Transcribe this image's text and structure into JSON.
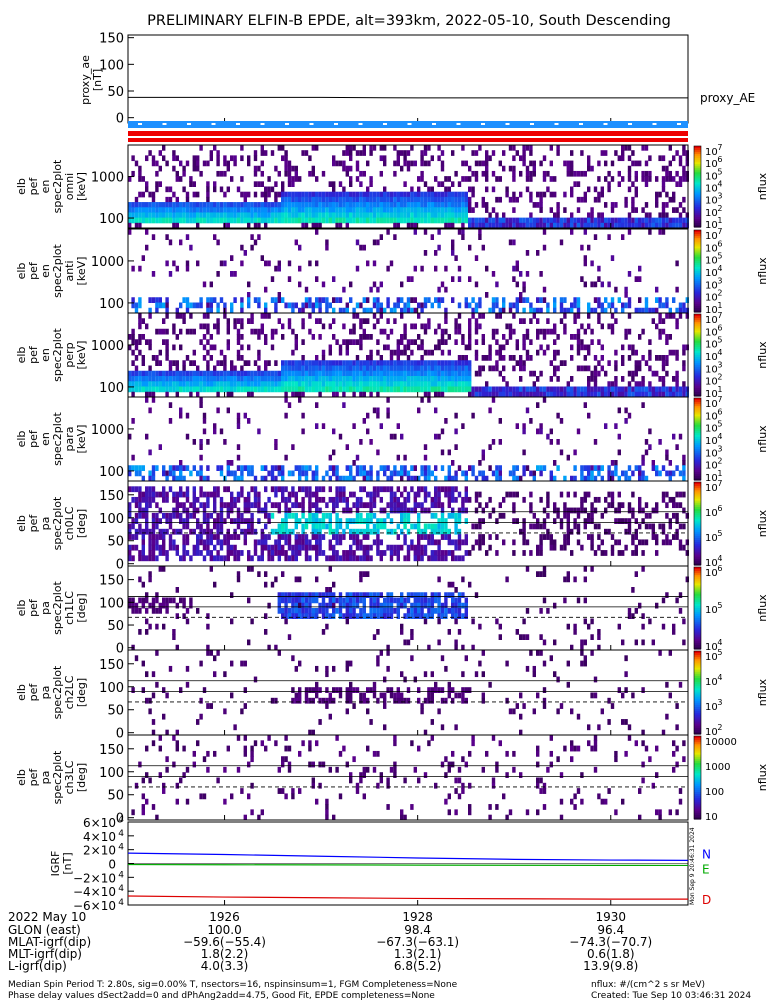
{
  "title": "PRELIMINARY ELFIN-B EPDE, alt=393km, 2022-05-10, South Descending",
  "colors": {
    "flag_blue": "#1e90ff",
    "flag_red": "#ee0000",
    "grf_n": "#0000ff",
    "grf_e": "#00aa00",
    "grf_d": "#dd0000"
  },
  "chart_data": [
    {
      "type": "line",
      "panel": "proxy_ae",
      "ylabel": [
        "proxy_ae",
        "[nT]"
      ],
      "yticks": [
        "150",
        "100",
        "50",
        "0"
      ],
      "ylim": [
        -10,
        155
      ],
      "series": [
        {
          "name": "proxy_AE",
          "x": [
            1925.0,
            1926.0,
            1927.0,
            1928.0,
            1929.0,
            1930.0,
            1930.8
          ],
          "values": [
            38,
            38,
            38,
            37,
            37,
            37,
            37
          ]
        }
      ]
    },
    {
      "type": "heatmap",
      "panel": "spectra-1",
      "ylabel": [
        "elb",
        "pef",
        "en",
        "spec2plot",
        "omni",
        "[keV]"
      ],
      "yticks": [
        "1000",
        "100"
      ],
      "cbar_label": "nflux",
      "cbar_ticks": [
        "10",
        "10",
        "10",
        "10",
        "10",
        "10",
        "10"
      ],
      "cbar_exps": [
        "7",
        "6",
        "5",
        "4",
        "3",
        "2",
        "1"
      ]
    },
    {
      "type": "heatmap",
      "panel": "spectra-2",
      "ylabel": [
        "elb",
        "pef",
        "en",
        "spec2plot",
        "anti",
        "[keV]"
      ],
      "yticks": [
        "1000",
        "100"
      ],
      "cbar_label": "nflux",
      "cbar_ticks": [
        "10",
        "10",
        "10",
        "10",
        "10",
        "10",
        "10"
      ],
      "cbar_exps": [
        "7",
        "6",
        "5",
        "4",
        "3",
        "2",
        "1"
      ]
    },
    {
      "type": "heatmap",
      "panel": "spectra-3",
      "ylabel": [
        "elb",
        "pef",
        "en",
        "spec2plot",
        "perp",
        "[keV]"
      ],
      "yticks": [
        "1000",
        "100"
      ],
      "cbar_label": "nflux",
      "cbar_ticks": [
        "10",
        "10",
        "10",
        "10",
        "10",
        "10",
        "10"
      ],
      "cbar_exps": [
        "7",
        "6",
        "5",
        "4",
        "3",
        "2",
        "1"
      ]
    },
    {
      "type": "heatmap",
      "panel": "spectra-4",
      "ylabel": [
        "elb",
        "pef",
        "en",
        "spec2plot",
        "para",
        "[keV]"
      ],
      "yticks": [
        "1000",
        "100"
      ],
      "cbar_label": "nflux",
      "cbar_ticks": [
        "10",
        "10",
        "10",
        "10",
        "10",
        "10",
        "10"
      ],
      "cbar_exps": [
        "7",
        "6",
        "5",
        "4",
        "3",
        "2",
        "1"
      ]
    },
    {
      "type": "heatmap",
      "panel": "pitch-ch0",
      "ylabel": [
        "elb",
        "pef",
        "pa",
        "spec2plot",
        "ch0LC",
        "[deg]"
      ],
      "yticks": [
        "150",
        "100",
        "50",
        "0"
      ],
      "cbar_label": "nflux",
      "cbar_ticks": [
        "10",
        "10",
        "10",
        "10"
      ],
      "cbar_exps": [
        "7",
        "6",
        "5",
        "4"
      ]
    },
    {
      "type": "heatmap",
      "panel": "pitch-ch1",
      "ylabel": [
        "elb",
        "pef",
        "pa",
        "spec2plot",
        "ch1LC",
        "[deg]"
      ],
      "yticks": [
        "150",
        "100",
        "50",
        "0"
      ],
      "cbar_label": "nflux",
      "cbar_ticks": [
        "10",
        "10",
        "10"
      ],
      "cbar_exps": [
        "6",
        "5",
        "4"
      ]
    },
    {
      "type": "heatmap",
      "panel": "pitch-ch2",
      "ylabel": [
        "elb",
        "pef",
        "pa",
        "spec2plot",
        "ch2LC",
        "[deg]"
      ],
      "yticks": [
        "150",
        "100",
        "50",
        "0"
      ],
      "cbar_label": "nflux",
      "cbar_ticks": [
        "10",
        "10",
        "10",
        "10"
      ],
      "cbar_exps": [
        "5",
        "4",
        "3",
        "2"
      ]
    },
    {
      "type": "heatmap",
      "panel": "pitch-ch3",
      "ylabel": [
        "elb",
        "pef",
        "pa",
        "spec2plot",
        "ch3LC",
        "[deg]"
      ],
      "yticks": [
        "150",
        "100",
        "50",
        "0"
      ],
      "cbar_label": "nflux",
      "cbar_ticks": [
        "10000",
        "1000",
        "100",
        "10"
      ],
      "cbar_exps": [
        "",
        "",
        "",
        ""
      ]
    },
    {
      "type": "line",
      "panel": "igrf",
      "ylabel": [
        "IGRF",
        "[nT]"
      ],
      "yticks": [
        "6×10",
        "4×10",
        "2×10",
        "0",
        "−2×10",
        "−4×10",
        "−6×10"
      ],
      "yexps": [
        "4",
        "4",
        "4",
        "",
        "4",
        "4",
        "4"
      ],
      "ylim": [
        -60000,
        60000
      ],
      "series": [
        {
          "name": "N",
          "x": [
            1925.0,
            1926.0,
            1927.0,
            1928.0,
            1929.0,
            1930.0,
            1930.8
          ],
          "values": [
            15000,
            13000,
            10500,
            8000,
            6000,
            5000,
            4500
          ]
        },
        {
          "name": "E",
          "x": [
            1925.0,
            1926.0,
            1927.0,
            1928.0,
            1929.0,
            1930.0,
            1930.8
          ],
          "values": [
            -1500,
            -1800,
            -2000,
            -2300,
            -2500,
            -2700,
            -2800
          ]
        },
        {
          "name": "D",
          "x": [
            1925.0,
            1926.0,
            1927.0,
            1928.0,
            1929.0,
            1930.0,
            1930.8
          ],
          "values": [
            -47000,
            -48500,
            -49500,
            -50500,
            -51000,
            -51500,
            -51500
          ]
        }
      ]
    }
  ],
  "xaxis": {
    "date_label": "2022 May 10",
    "ticks": [
      "1926",
      "1928",
      "1930"
    ],
    "rows": [
      {
        "name": "GLON (east)",
        "values": [
          "100.0",
          "98.4",
          "96.4"
        ]
      },
      {
        "name": "MLAT-igrf(dip)",
        "values": [
          "−59.6(−55.4)",
          "−67.3(−63.1)",
          "−74.3(−70.7)"
        ]
      },
      {
        "name": "MLT-igrf(dip)",
        "values": [
          "1.8(2.2)",
          "1.3(2.1)",
          "0.6(1.8)"
        ]
      },
      {
        "name": "L-igrf(dip)",
        "values": [
          "4.0(3.3)",
          "6.8(5.2)",
          "13.9(9.8)"
        ]
      }
    ]
  },
  "footer": {
    "line1": "Median Spin Period T: 2.80s, sig=0.00% T, nsectors=16, nspinsinsum=1, FGM Completeness=None",
    "line2": "Phase delay values dSect2add=0 and dPhAng2add=4.75, Good Fit, EPDE completeness=None",
    "nflux_units": "nflux: #/(cm^2 s sr MeV)",
    "created": "Created: Tue Sep 10 03:46:31 2024",
    "vertical_stamp": "Mon Sep  9 20:46:31 2024"
  }
}
